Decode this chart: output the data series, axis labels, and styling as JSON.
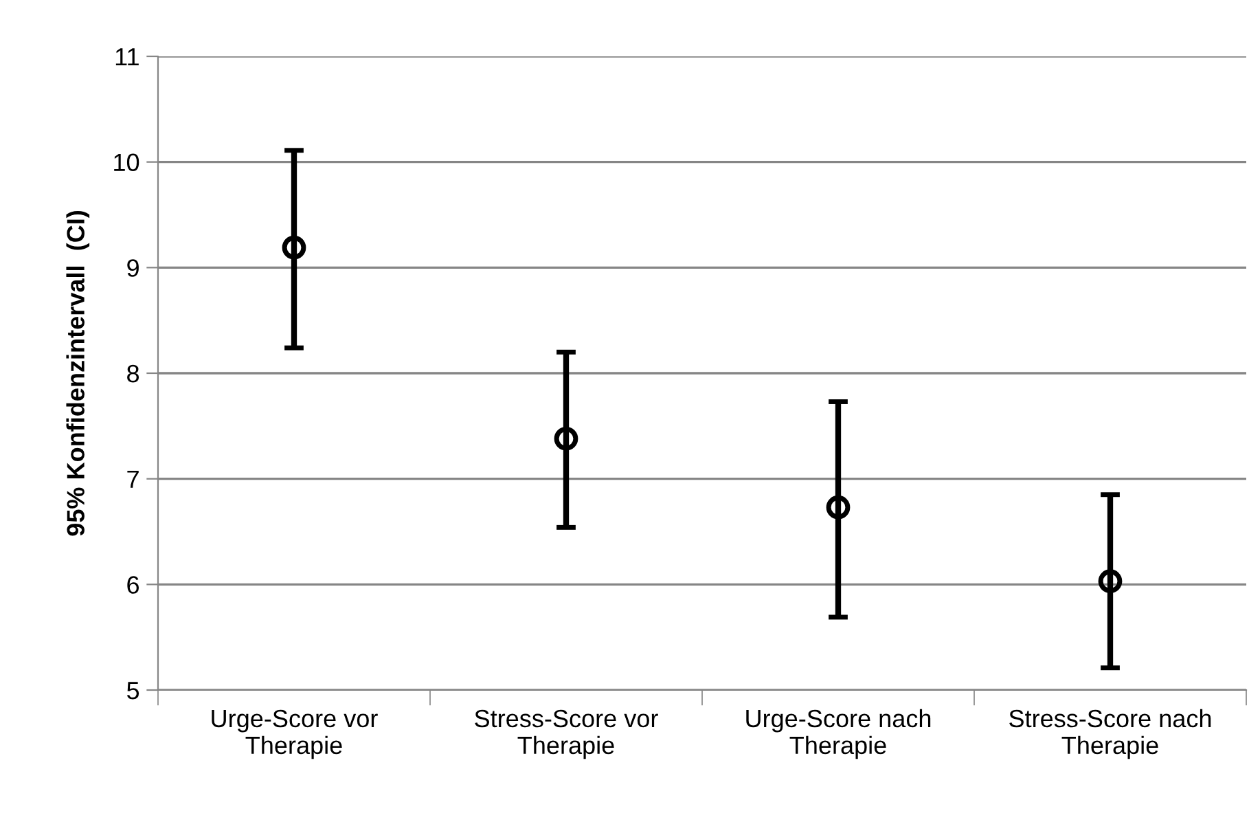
{
  "chart_data": {
    "type": "scatter",
    "ylabel": "95% Konfidenzintervall  (CI)",
    "categories": [
      "Urge-Score vor\nTherapie",
      "Stress-Score vor\nTherapie",
      "Urge-Score nach\nTherapie",
      "Stress-Score nach\nTherapie"
    ],
    "series": [
      {
        "color": "#000000",
        "values": [
          9.19,
          7.38,
          6.73,
          6.03
        ],
        "errors": [
          [
            8.24,
            10.11
          ],
          [
            6.54,
            8.2
          ],
          [
            5.69,
            7.73
          ],
          [
            5.21,
            6.85
          ]
        ]
      }
    ],
    "ylim": [
      5,
      11
    ],
    "yticks": [
      5,
      6,
      7,
      8,
      9,
      10,
      11
    ],
    "grid": "y",
    "marker": "circle"
  }
}
